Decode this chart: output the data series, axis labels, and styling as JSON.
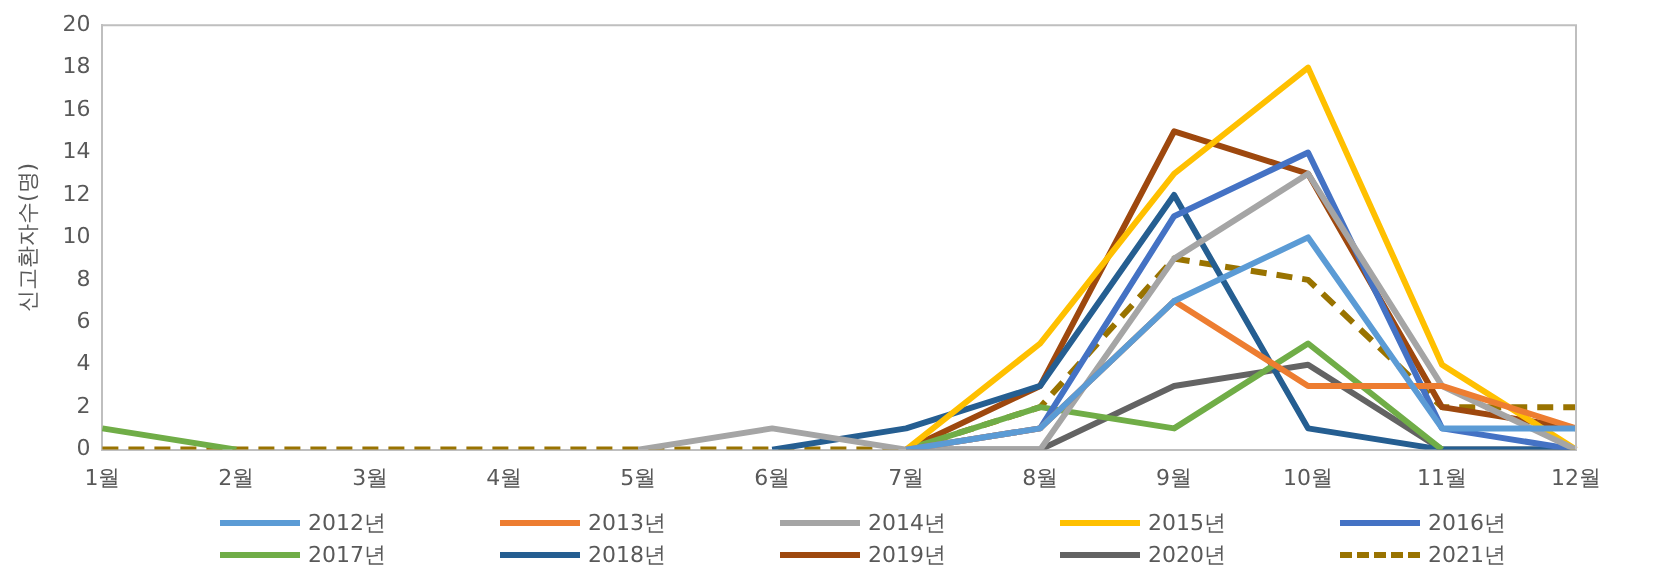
{
  "chart_data": {
    "type": "line",
    "ylabel": "신고환자수(명)",
    "categories": [
      "1월",
      "2월",
      "3월",
      "4월",
      "5월",
      "6월",
      "7월",
      "8월",
      "9월",
      "10월",
      "11월",
      "12월"
    ],
    "ylim": [
      0,
      20
    ],
    "yticks": [
      0,
      2,
      4,
      6,
      8,
      10,
      12,
      14,
      16,
      18,
      20
    ],
    "grid": false,
    "legend": "bottom",
    "marker": "none",
    "series": [
      {
        "name": "2012년",
        "color": "#5b9bd5",
        "values": [
          null,
          null,
          null,
          null,
          null,
          null,
          0,
          1,
          7,
          10,
          1,
          1
        ]
      },
      {
        "name": "2013년",
        "color": "#ed7d31",
        "values": [
          null,
          null,
          null,
          null,
          null,
          null,
          0,
          1,
          7,
          3,
          3,
          1
        ]
      },
      {
        "name": "2014년",
        "color": "#a5a5a5",
        "values": [
          null,
          null,
          null,
          null,
          0,
          1,
          0,
          0,
          9,
          13,
          3,
          0
        ]
      },
      {
        "name": "2015년",
        "color": "#ffc000",
        "values": [
          null,
          null,
          null,
          null,
          null,
          null,
          0,
          5,
          13,
          18,
          4,
          0
        ]
      },
      {
        "name": "2016년",
        "color": "#4472c4",
        "values": [
          null,
          null,
          null,
          null,
          null,
          null,
          0,
          1,
          11,
          14,
          1,
          0
        ]
      },
      {
        "name": "2017년",
        "color": "#70ad47",
        "values": [
          1,
          0,
          null,
          null,
          null,
          null,
          0,
          2,
          1,
          5,
          0,
          null
        ]
      },
      {
        "name": "2018년",
        "color": "#255e91",
        "values": [
          null,
          null,
          null,
          null,
          null,
          0,
          1,
          3,
          12,
          1,
          0,
          0
        ]
      },
      {
        "name": "2019년",
        "color": "#9e480e",
        "values": [
          null,
          null,
          null,
          null,
          null,
          null,
          0,
          3,
          15,
          13,
          2,
          1
        ]
      },
      {
        "name": "2020년",
        "color": "#636363",
        "values": [
          null,
          null,
          null,
          null,
          null,
          null,
          0,
          0,
          3,
          4,
          0,
          0
        ]
      },
      {
        "name": "2021년",
        "color": "#997300",
        "line_style": "dashed",
        "values": [
          0,
          0,
          0,
          0,
          0,
          0,
          0,
          2,
          9,
          8,
          2,
          2
        ]
      }
    ]
  }
}
